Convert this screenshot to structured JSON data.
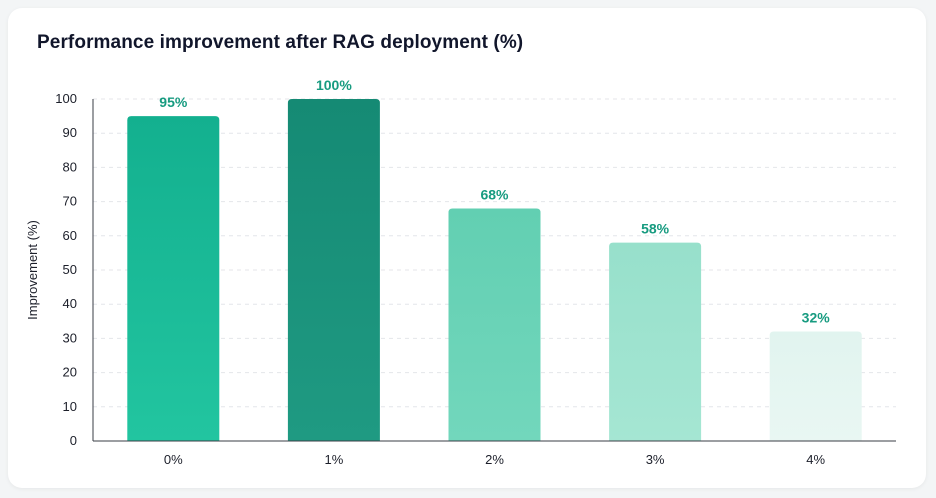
{
  "chart_data": {
    "type": "bar",
    "title": "Performance improvement after RAG deployment (%)",
    "xlabel": "",
    "ylabel": "Improvement (%)",
    "categories": [
      "0%",
      "1%",
      "2%",
      "3%",
      "4%"
    ],
    "values": [
      95,
      100,
      68,
      58,
      32
    ],
    "data_labels": [
      "95%",
      "100%",
      "68%",
      "58%",
      "32%"
    ],
    "ylim": [
      0,
      100
    ],
    "yticks": [
      0,
      10,
      20,
      30,
      40,
      50,
      60,
      70,
      80,
      90,
      100
    ],
    "grid": true,
    "legend": "none",
    "colors": [
      [
        "#22c5a0",
        "#13b08f"
      ],
      [
        "#1f9a82",
        "#158a74"
      ],
      [
        "#72d7bc",
        "#62cfb2"
      ],
      [
        "#a5e6d3",
        "#97e0cb"
      ],
      [
        "#e9f7f3",
        "#e1f4ef"
      ]
    ],
    "label_color": "#179b80"
  }
}
